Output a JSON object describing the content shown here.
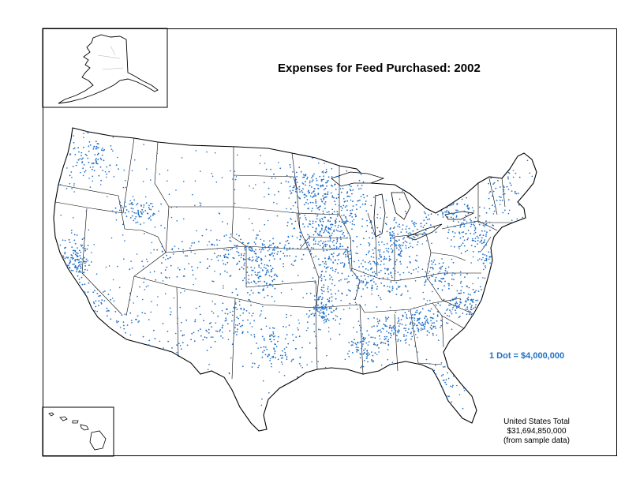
{
  "title": "Expenses for Feed Purchased:  2002",
  "legend": {
    "dot_value": "1 Dot = $4,000,000",
    "dot_color": "#1f6fc6"
  },
  "totals": {
    "line1": "United States Total",
    "line2": "$31,694,850,000",
    "line3": "(from sample data)"
  },
  "regions": [
    "Alaska",
    "Hawaii",
    "Conterminous United States"
  ]
}
